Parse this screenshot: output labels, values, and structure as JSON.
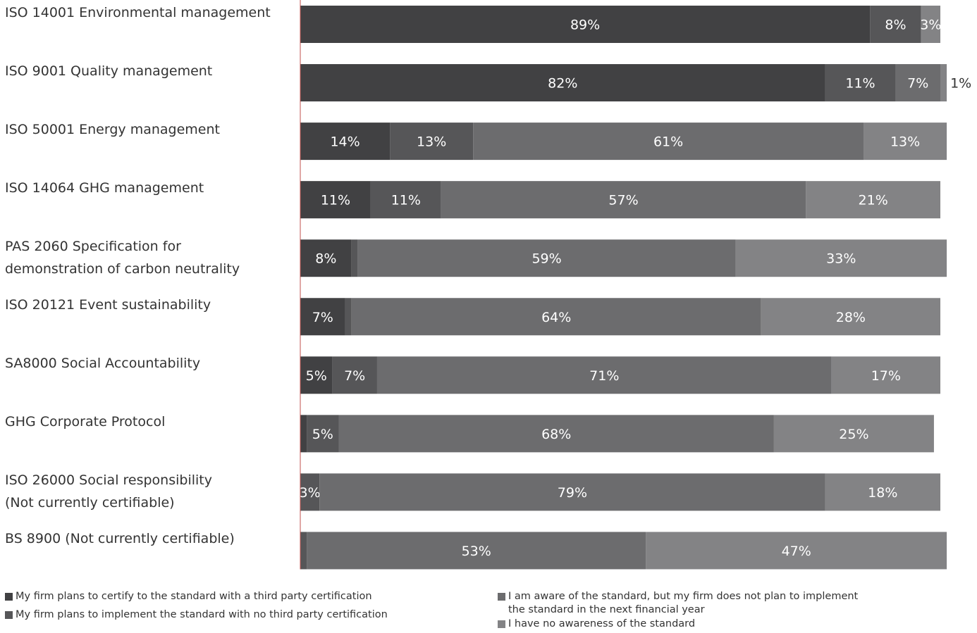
{
  "chart_data": {
    "type": "bar",
    "orientation": "horizontal",
    "stacked": true,
    "xlim": [
      0,
      100
    ],
    "categories": [
      [
        "ISO 14001 Environmental management"
      ],
      [
        "ISO 9001 Quality management"
      ],
      [
        "ISO 50001 Energy management"
      ],
      [
        "ISO 14064 GHG management"
      ],
      [
        "PAS 2060 Specification for",
        "demonstration of carbon neutrality"
      ],
      [
        "ISO 20121 Event sustainability"
      ],
      [
        "SA8000 Social Accountability"
      ],
      [
        "GHG Corporate Protocol"
      ],
      [
        "ISO 26000 Social responsibility",
        "(Not currently certifiable)"
      ],
      [
        "BS 8900 (Not currently certifiable)"
      ]
    ],
    "series": [
      {
        "name": "My firm plans to certify to the standard with a third party certification",
        "color": "#414143",
        "values": [
          89,
          82,
          14,
          11,
          8,
          7,
          5,
          1,
          0,
          0
        ]
      },
      {
        "name": "My firm plans to implement the standard with no third party certification",
        "color": "#565658",
        "values": [
          8,
          11,
          13,
          11,
          1,
          1,
          7,
          5,
          3,
          1
        ]
      },
      {
        "name": "I am aware of the standard, but my firm does not plan to implement the standard in the next financial year",
        "color": "#6c6c6e",
        "values": [
          0,
          7,
          61,
          57,
          59,
          64,
          71,
          68,
          79,
          53
        ]
      },
      {
        "name": "I have no awareness of the standard",
        "color": "#838385",
        "values": [
          3,
          1,
          13,
          21,
          33,
          28,
          17,
          25,
          18,
          47
        ]
      }
    ],
    "data_labels": [
      [
        "89%",
        "8%",
        "",
        "3%"
      ],
      [
        "82%",
        "11%",
        "7%",
        "1%"
      ],
      [
        "14%",
        "13%",
        "61%",
        "13%"
      ],
      [
        "11%",
        "11%",
        "57%",
        "21%"
      ],
      [
        "8%",
        "1%",
        "59%",
        "33%"
      ],
      [
        "7%",
        "1%",
        "64%",
        "28%"
      ],
      [
        "5%",
        "7%",
        "71%",
        "17%"
      ],
      [
        "1%",
        "5%",
        "68%",
        "25%"
      ],
      [
        "",
        "3%",
        "79%",
        "18%"
      ],
      [
        "",
        "1%",
        "53%",
        "47%"
      ]
    ],
    "axis_line_color": "#c0504d",
    "legend_position": "bottom"
  },
  "legend": {
    "left": [
      {
        "label": "My firm plans to certify to the standard with a third party certification",
        "color": "#414143"
      },
      {
        "label": "My firm plans to implement the standard with no third party certification",
        "color": "#565658"
      }
    ],
    "right": [
      {
        "label_lines": [
          "I am aware of the standard, but my firm does not plan to implement",
          "the standard in the next financial year"
        ],
        "color": "#6c6c6e"
      },
      {
        "label_lines": [
          "I have no awareness of the standard"
        ],
        "color": "#838385"
      }
    ]
  }
}
